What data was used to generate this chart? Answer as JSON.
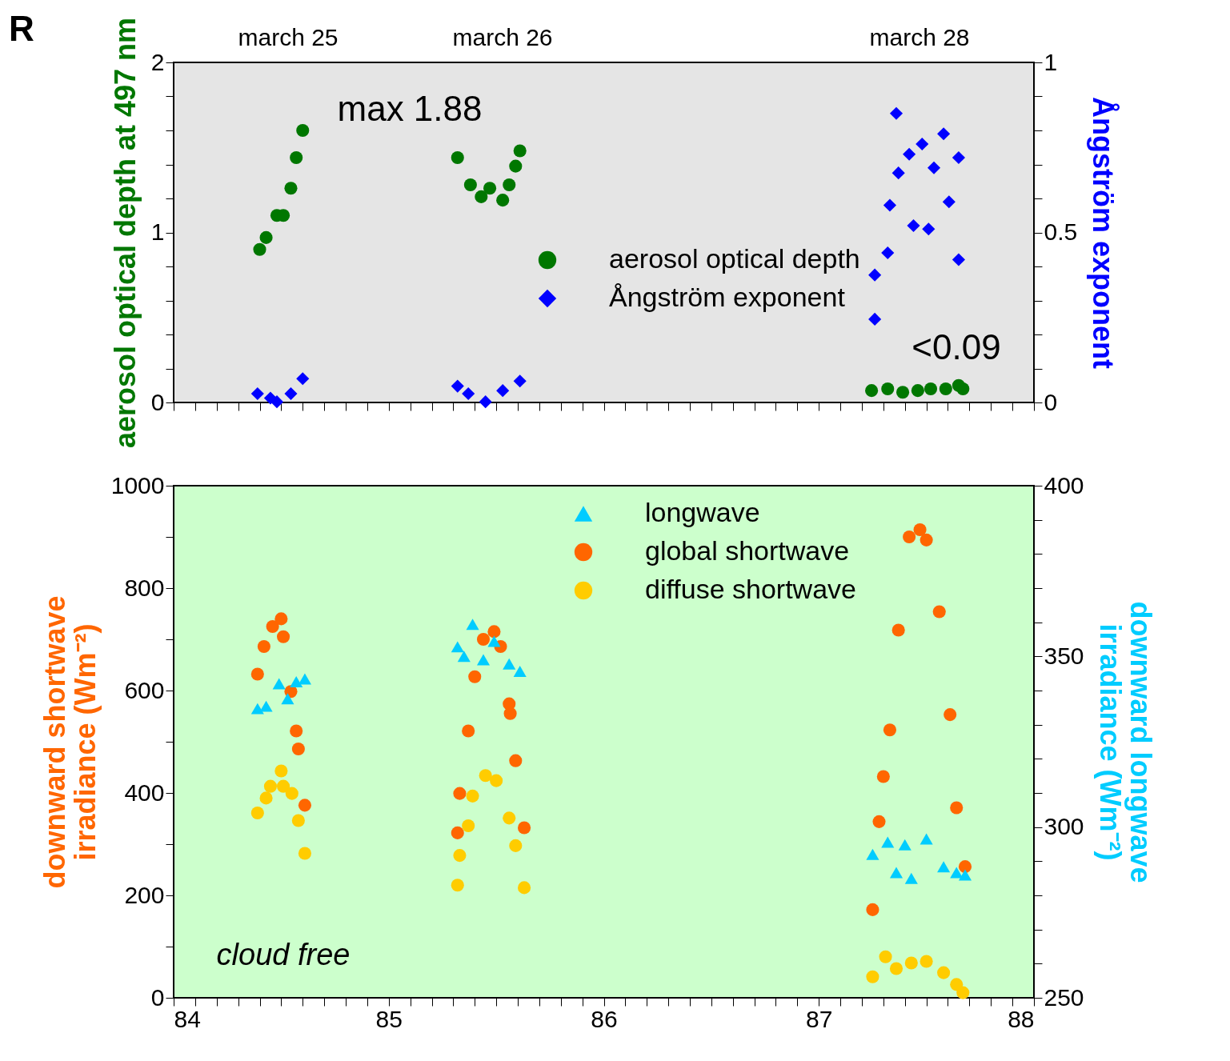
{
  "chart_data": [
    {
      "type": "scatter",
      "ylabel": "aerosol optical depth at 497 nm",
      "y2label": "Ångström exponent",
      "legend": "right",
      "tick_labels": "y",
      "annotations": [
        "R",
        "march 25",
        "march 26",
        "march 28",
        "max 1.88",
        "<0.09"
      ],
      "xlim": [
        84,
        88
      ],
      "xticks": [
        84,
        {
          "value": 84.1,
          "label": null
        },
        {
          "value": 84.2,
          "label": null
        },
        {
          "value": 84.3,
          "label": null
        },
        {
          "value": 84.4,
          "label": null
        },
        {
          "value": 84.5,
          "label": null
        },
        {
          "value": 84.6,
          "label": null
        },
        {
          "value": 84.7,
          "label": null
        },
        {
          "value": 84.8,
          "label": null
        },
        {
          "value": 84.9,
          "label": null
        },
        85,
        {
          "value": 85.1,
          "label": null
        },
        {
          "value": 85.2,
          "label": null
        },
        {
          "value": 85.3,
          "label": null
        },
        {
          "value": 85.4,
          "label": null
        },
        {
          "value": 85.5,
          "label": null
        },
        {
          "value": 85.6,
          "label": null
        },
        {
          "value": 85.7,
          "label": null
        },
        {
          "value": 85.8,
          "label": null
        },
        {
          "value": 85.9,
          "label": null
        },
        86,
        {
          "value": 86.1,
          "label": null
        },
        {
          "value": 86.2,
          "label": null
        },
        {
          "value": 86.3,
          "label": null
        },
        {
          "value": 86.4,
          "label": null
        },
        {
          "value": 86.5,
          "label": null
        },
        {
          "value": 86.6,
          "label": null
        },
        {
          "value": 86.7,
          "label": null
        },
        {
          "value": 86.8,
          "label": null
        },
        {
          "value": 86.9,
          "label": null
        },
        87,
        {
          "value": 87.1,
          "label": null
        },
        {
          "value": 87.2,
          "label": null
        },
        {
          "value": 87.3,
          "label": null
        },
        {
          "value": 87.4,
          "label": null
        },
        {
          "value": 87.5,
          "label": null
        },
        {
          "value": 87.6,
          "label": null
        },
        {
          "value": 87.7,
          "label": null
        },
        {
          "value": 87.8,
          "label": null
        },
        {
          "value": 87.9,
          "label": null
        },
        88
      ],
      "ylim": [
        0,
        2
      ],
      "yticks": [
        0,
        {
          "value": 0.2,
          "label": null
        },
        {
          "value": 0.4,
          "label": null
        },
        {
          "value": 0.6,
          "label": null
        },
        {
          "value": 0.8,
          "label": null
        },
        1,
        {
          "value": 1.2,
          "label": null
        },
        {
          "value": 1.4,
          "label": null
        },
        {
          "value": 1.6,
          "label": null
        },
        {
          "value": 1.8,
          "label": null
        },
        2
      ],
      "y2lim": [
        0,
        1
      ],
      "y2ticks": [
        0,
        {
          "value": 0.1,
          "label": null
        },
        {
          "value": 0.2,
          "label": null
        },
        {
          "value": 0.3,
          "label": null
        },
        {
          "value": 0.4,
          "label": null
        },
        0.5,
        {
          "value": 0.6,
          "label": null
        },
        {
          "value": 0.7,
          "label": null
        },
        {
          "value": 0.8,
          "label": null
        },
        {
          "value": 0.9,
          "label": null
        },
        1
      ],
      "series": [
        {
          "name": "aerosol optical depth",
          "color": "#007700",
          "marker": "circle",
          "x": [
            84.4,
            84.43,
            84.48,
            84.51,
            84.545,
            84.57,
            84.6,
            85.32,
            85.38,
            85.43,
            85.47,
            85.53,
            85.56,
            85.59,
            85.61,
            87.245,
            87.32,
            87.39,
            87.46,
            87.52,
            87.59,
            87.65,
            87.67
          ],
          "values": [
            0.9,
            0.97,
            1.1,
            1.1,
            1.26,
            1.44,
            1.6,
            1.44,
            1.28,
            1.21,
            1.26,
            1.19,
            1.28,
            1.39,
            1.48,
            0.07,
            0.08,
            0.06,
            0.07,
            0.08,
            0.08,
            0.1,
            0.08
          ]
        },
        {
          "name": "Ångström exponent",
          "color": "#0000ff",
          "marker": "diamond",
          "axis": "y2",
          "x": [
            84.39,
            84.45,
            84.48,
            84.545,
            84.6,
            85.32,
            85.37,
            85.45,
            85.53,
            85.61,
            87.26,
            87.26,
            87.32,
            87.33,
            87.36,
            87.37,
            87.42,
            87.44,
            87.48,
            87.51,
            87.535,
            87.58,
            87.605,
            87.65,
            87.65
          ],
          "values": [
            0.026,
            0.013,
            0.002,
            0.026,
            0.07,
            0.048,
            0.026,
            0.002,
            0.035,
            0.063,
            0.245,
            0.375,
            0.44,
            0.58,
            0.85,
            0.675,
            0.73,
            0.52,
            0.76,
            0.51,
            0.69,
            0.79,
            0.59,
            0.72,
            0.42
          ]
        }
      ]
    },
    {
      "type": "scatter",
      "ylabel": "downward shortwave\nirradiance (Wm⁻²)",
      "y2label": "downward longwave\nirradiance (Wm⁻²)",
      "legend": "top",
      "annotations": [
        "cloud free"
      ],
      "xlim": [
        84,
        88
      ],
      "xticks": [
        84,
        {
          "value": 84.1,
          "label": null
        },
        {
          "value": 84.2,
          "label": null
        },
        {
          "value": 84.3,
          "label": null
        },
        {
          "value": 84.4,
          "label": null
        },
        {
          "value": 84.5,
          "label": null
        },
        {
          "value": 84.6,
          "label": null
        },
        {
          "value": 84.7,
          "label": null
        },
        {
          "value": 84.8,
          "label": null
        },
        {
          "value": 84.9,
          "label": null
        },
        85,
        {
          "value": 85.1,
          "label": null
        },
        {
          "value": 85.2,
          "label": null
        },
        {
          "value": 85.3,
          "label": null
        },
        {
          "value": 85.4,
          "label": null
        },
        {
          "value": 85.5,
          "label": null
        },
        {
          "value": 85.6,
          "label": null
        },
        {
          "value": 85.7,
          "label": null
        },
        {
          "value": 85.8,
          "label": null
        },
        {
          "value": 85.9,
          "label": null
        },
        86,
        {
          "value": 86.1,
          "label": null
        },
        {
          "value": 86.2,
          "label": null
        },
        {
          "value": 86.3,
          "label": null
        },
        {
          "value": 86.4,
          "label": null
        },
        {
          "value": 86.5,
          "label": null
        },
        {
          "value": 86.6,
          "label": null
        },
        {
          "value": 86.7,
          "label": null
        },
        {
          "value": 86.8,
          "label": null
        },
        {
          "value": 86.9,
          "label": null
        },
        87,
        {
          "value": 87.1,
          "label": null
        },
        {
          "value": 87.2,
          "label": null
        },
        {
          "value": 87.3,
          "label": null
        },
        {
          "value": 87.4,
          "label": null
        },
        {
          "value": 87.5,
          "label": null
        },
        {
          "value": 87.6,
          "label": null
        },
        {
          "value": 87.7,
          "label": null
        },
        {
          "value": 87.8,
          "label": null
        },
        {
          "value": 87.9,
          "label": null
        },
        88
      ],
      "ylim": [
        0,
        1000
      ],
      "yticks": [
        0,
        {
          "value": 100,
          "label": null
        },
        200,
        {
          "value": 300,
          "label": null
        },
        400,
        {
          "value": 500,
          "label": null
        },
        600,
        {
          "value": 700,
          "label": null
        },
        800,
        {
          "value": 900,
          "label": null
        },
        1000
      ],
      "y2lim": [
        250,
        400
      ],
      "y2ticks": [
        250,
        {
          "value": 260,
          "label": null
        },
        {
          "value": 270,
          "label": null
        },
        {
          "value": 280,
          "label": null
        },
        {
          "value": 290,
          "label": null
        },
        300,
        {
          "value": 310,
          "label": null
        },
        {
          "value": 320,
          "label": null
        },
        {
          "value": 330,
          "label": null
        },
        {
          "value": 340,
          "label": null
        },
        350,
        {
          "value": 360,
          "label": null
        },
        {
          "value": 370,
          "label": null
        },
        {
          "value": 380,
          "label": null
        },
        {
          "value": 390,
          "label": null
        },
        400
      ],
      "series": [
        {
          "name": "longwave",
          "color": "#00ccff",
          "marker": "triangle",
          "axis": "y2",
          "x": [
            84.39,
            84.43,
            84.49,
            84.53,
            84.57,
            84.61,
            85.32,
            85.35,
            85.39,
            85.44,
            85.49,
            85.56,
            85.61,
            87.25,
            87.32,
            87.36,
            87.4,
            87.43,
            87.5,
            87.58,
            87.64,
            87.68
          ],
          "values": [
            334.7,
            335.4,
            342,
            337.6,
            342.6,
            343.4,
            352.8,
            350,
            359.4,
            349,
            354.4,
            347.8,
            345.6,
            292,
            295.6,
            286.7,
            294.8,
            285,
            296.5,
            288.4,
            286.7,
            286
          ]
        },
        {
          "name": "global shortwave",
          "color": "#ff6600",
          "marker": "circle",
          "x": [
            84.39,
            84.42,
            84.46,
            84.5,
            84.51,
            84.545,
            84.57,
            84.58,
            84.61,
            85.32,
            85.33,
            85.37,
            85.4,
            85.44,
            85.49,
            85.52,
            85.56,
            85.565,
            85.59,
            85.63,
            87.25,
            87.28,
            87.3,
            87.33,
            87.37,
            87.42,
            87.47,
            87.5,
            87.56,
            87.61,
            87.64,
            87.68
          ],
          "values": [
            632,
            686,
            725,
            740,
            705,
            598,
            521,
            486,
            376,
            322,
            399,
            521,
            627,
            700,
            715,
            686,
            574,
            555,
            463,
            332,
            172,
            344,
            432,
            523,
            718,
            900,
            914,
            894,
            754,
            553,
            371,
            256
          ]
        },
        {
          "name": "diffuse shortwave",
          "color": "#ffcc00",
          "marker": "circle",
          "x": [
            84.39,
            84.43,
            84.45,
            84.5,
            84.51,
            84.55,
            84.58,
            84.61,
            85.32,
            85.33,
            85.37,
            85.39,
            85.45,
            85.5,
            85.56,
            85.59,
            85.63,
            87.25,
            87.31,
            87.36,
            87.43,
            87.5,
            87.58,
            87.64,
            87.67
          ],
          "values": [
            361,
            390,
            413,
            443,
            413,
            399,
            346,
            282,
            220,
            278,
            336,
            394,
            434,
            424,
            351,
            297,
            215,
            41,
            80,
            57,
            68,
            71,
            49,
            26,
            10
          ]
        }
      ]
    }
  ]
}
